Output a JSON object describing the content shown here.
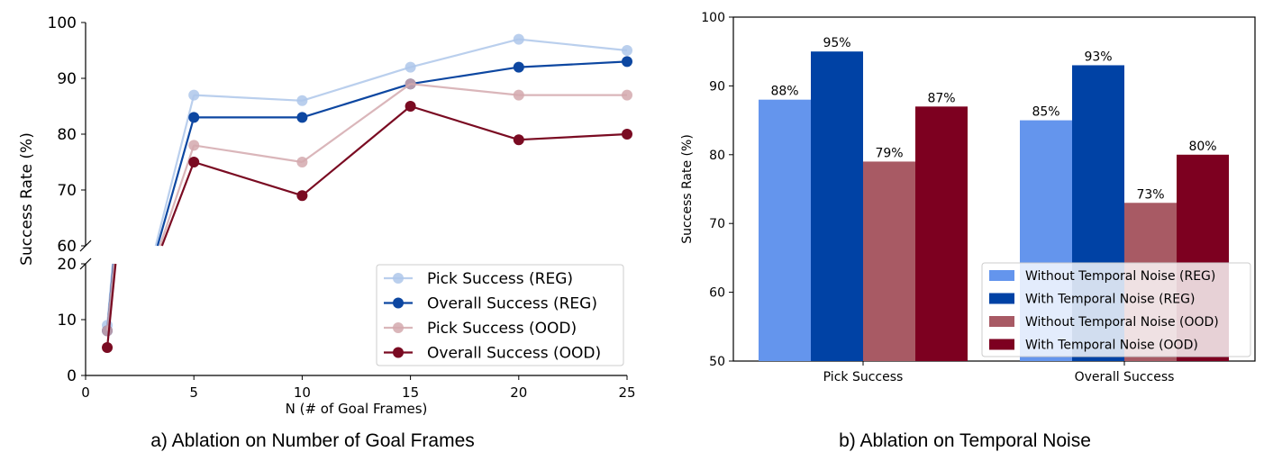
{
  "captions": {
    "left": "a) Ablation on Number of Goal Frames",
    "right": "b) Ablation on Temporal Noise"
  },
  "chart_data": [
    {
      "type": "line",
      "xlabel": "N (# of Goal Frames)",
      "ylabel": "Success Rate (%)",
      "x": [
        1,
        5,
        10,
        15,
        20,
        25
      ],
      "xticks": [
        "0",
        "5",
        "10",
        "15",
        "20",
        "25"
      ],
      "xlim": [
        0,
        25
      ],
      "broken_y_axis": true,
      "ylim_upper": [
        60,
        100
      ],
      "ylim_lower": [
        0,
        20
      ],
      "yticks_upper": [
        "60",
        "70",
        "80",
        "90",
        "100"
      ],
      "yticks_lower": [
        "0",
        "10",
        "20"
      ],
      "legend_position": "lower-right",
      "grid": false,
      "series": [
        {
          "name": "Pick Success (REG)",
          "color": "#aec7ea",
          "values": [
            9,
            87,
            86,
            92,
            97,
            95
          ]
        },
        {
          "name": "Overall Success (REG)",
          "color": "#0d47a1",
          "values": [
            8,
            83,
            83,
            89,
            92,
            93
          ]
        },
        {
          "name": "Pick Success (OOD)",
          "color": "#d4a9ae",
          "values": [
            8,
            78,
            75,
            89,
            87,
            87
          ]
        },
        {
          "name": "Overall Success (OOD)",
          "color": "#7a0b22",
          "values": [
            5,
            75,
            69,
            85,
            79,
            80
          ]
        }
      ]
    },
    {
      "type": "bar",
      "categories": [
        "Pick Success",
        "Overall Success"
      ],
      "ylabel": "Success Rate (%)",
      "ylim": [
        50,
        100
      ],
      "yticks": [
        "50",
        "60",
        "70",
        "80",
        "90",
        "100"
      ],
      "legend_position": "lower-right",
      "grid": false,
      "series": [
        {
          "name": "Without Temporal Noise (REG)",
          "color": "#6495ed",
          "values": [
            88,
            85
          ],
          "labels": [
            "88%",
            "85%"
          ]
        },
        {
          "name": "With Temporal Noise (REG)",
          "color": "#0042a5",
          "values": [
            95,
            93
          ],
          "labels": [
            "95%",
            "93%"
          ]
        },
        {
          "name": "Without Temporal Noise (OOD)",
          "color": "#a85a64",
          "values": [
            79,
            73
          ],
          "labels": [
            "79%",
            "73%"
          ]
        },
        {
          "name": "With Temporal Noise (OOD)",
          "color": "#7d0020",
          "values": [
            87,
            80
          ],
          "labels": [
            "87%",
            "80%"
          ]
        }
      ]
    }
  ]
}
